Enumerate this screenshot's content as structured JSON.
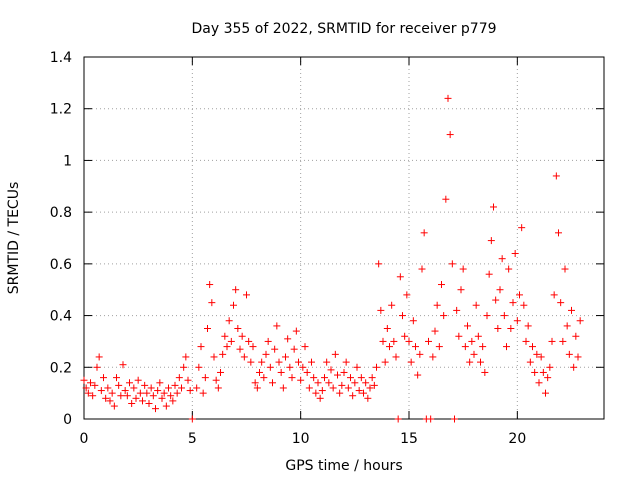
{
  "chart_data": {
    "type": "scatter",
    "title": "Day 355 of 2022, SRMTID for receiver p779",
    "xlabel": "GPS time / hours",
    "ylabel": "SRMTID / TECUs",
    "xlim": [
      0,
      24
    ],
    "ylim": [
      0,
      1.4
    ],
    "xticks": [
      0,
      5,
      10,
      15,
      20
    ],
    "xtick_labels": [
      "0",
      "5",
      "10",
      "15",
      "20"
    ],
    "yticks": [
      0,
      0.2,
      0.4,
      0.6,
      0.8,
      1.0,
      1.2,
      1.4
    ],
    "ytick_labels": [
      "0",
      "0.2",
      "0.4",
      "0.6",
      "0.8",
      "1",
      "1.2",
      "1.4"
    ],
    "grid": true,
    "marker": "+",
    "color": "#ff0000",
    "series": [
      {
        "name": "SRMTID",
        "points": [
          [
            0.0,
            0.15
          ],
          [
            0.1,
            0.12
          ],
          [
            0.2,
            0.1
          ],
          [
            0.3,
            0.14
          ],
          [
            0.4,
            0.09
          ],
          [
            0.5,
            0.13
          ],
          [
            0.6,
            0.2
          ],
          [
            0.7,
            0.24
          ],
          [
            0.8,
            0.11
          ],
          [
            0.9,
            0.16
          ],
          [
            1.0,
            0.08
          ],
          [
            1.1,
            0.12
          ],
          [
            1.2,
            0.07
          ],
          [
            1.3,
            0.1
          ],
          [
            1.4,
            0.05
          ],
          [
            1.5,
            0.16
          ],
          [
            1.6,
            0.13
          ],
          [
            1.7,
            0.09
          ],
          [
            1.8,
            0.21
          ],
          [
            1.9,
            0.11
          ],
          [
            2.0,
            0.09
          ],
          [
            2.1,
            0.14
          ],
          [
            2.2,
            0.06
          ],
          [
            2.3,
            0.12
          ],
          [
            2.4,
            0.08
          ],
          [
            2.5,
            0.15
          ],
          [
            2.6,
            0.1
          ],
          [
            2.7,
            0.07
          ],
          [
            2.8,
            0.13
          ],
          [
            2.9,
            0.1
          ],
          [
            3.0,
            0.06
          ],
          [
            3.1,
            0.12
          ],
          [
            3.2,
            0.09
          ],
          [
            3.3,
            0.04
          ],
          [
            3.4,
            0.11
          ],
          [
            3.5,
            0.14
          ],
          [
            3.6,
            0.08
          ],
          [
            3.7,
            0.1
          ],
          [
            3.8,
            0.05
          ],
          [
            3.9,
            0.12
          ],
          [
            4.0,
            0.09
          ],
          [
            4.1,
            0.07
          ],
          [
            4.2,
            0.13
          ],
          [
            4.3,
            0.1
          ],
          [
            4.4,
            0.16
          ],
          [
            4.5,
            0.12
          ],
          [
            4.6,
            0.2
          ],
          [
            4.7,
            0.24
          ],
          [
            4.8,
            0.15
          ],
          [
            4.9,
            0.11
          ],
          [
            5.0,
            0.0
          ],
          [
            5.2,
            0.12
          ],
          [
            5.3,
            0.2
          ],
          [
            5.4,
            0.28
          ],
          [
            5.5,
            0.1
          ],
          [
            5.6,
            0.16
          ],
          [
            5.7,
            0.35
          ],
          [
            5.8,
            0.52
          ],
          [
            5.9,
            0.45
          ],
          [
            6.0,
            0.24
          ],
          [
            6.1,
            0.15
          ],
          [
            6.2,
            0.12
          ],
          [
            6.3,
            0.18
          ],
          [
            6.4,
            0.25
          ],
          [
            6.5,
            0.32
          ],
          [
            6.6,
            0.28
          ],
          [
            6.7,
            0.38
          ],
          [
            6.8,
            0.3
          ],
          [
            6.9,
            0.44
          ],
          [
            7.0,
            0.5
          ],
          [
            7.1,
            0.35
          ],
          [
            7.2,
            0.27
          ],
          [
            7.3,
            0.32
          ],
          [
            7.4,
            0.24
          ],
          [
            7.5,
            0.48
          ],
          [
            7.6,
            0.3
          ],
          [
            7.7,
            0.22
          ],
          [
            7.8,
            0.28
          ],
          [
            7.9,
            0.14
          ],
          [
            8.0,
            0.12
          ],
          [
            8.1,
            0.18
          ],
          [
            8.2,
            0.22
          ],
          [
            8.3,
            0.16
          ],
          [
            8.4,
            0.25
          ],
          [
            8.5,
            0.3
          ],
          [
            8.6,
            0.2
          ],
          [
            8.7,
            0.14
          ],
          [
            8.8,
            0.27
          ],
          [
            8.9,
            0.36
          ],
          [
            9.0,
            0.22
          ],
          [
            9.1,
            0.18
          ],
          [
            9.2,
            0.12
          ],
          [
            9.3,
            0.24
          ],
          [
            9.4,
            0.31
          ],
          [
            9.5,
            0.2
          ],
          [
            9.6,
            0.16
          ],
          [
            9.7,
            0.27
          ],
          [
            9.8,
            0.34
          ],
          [
            9.9,
            0.22
          ],
          [
            10.0,
            0.15
          ],
          [
            10.1,
            0.2
          ],
          [
            10.2,
            0.28
          ],
          [
            10.3,
            0.18
          ],
          [
            10.4,
            0.12
          ],
          [
            10.5,
            0.22
          ],
          [
            10.6,
            0.16
          ],
          [
            10.7,
            0.1
          ],
          [
            10.8,
            0.14
          ],
          [
            10.9,
            0.08
          ],
          [
            11.0,
            0.11
          ],
          [
            11.1,
            0.16
          ],
          [
            11.2,
            0.22
          ],
          [
            11.3,
            0.14
          ],
          [
            11.4,
            0.19
          ],
          [
            11.5,
            0.12
          ],
          [
            11.6,
            0.25
          ],
          [
            11.7,
            0.17
          ],
          [
            11.8,
            0.1
          ],
          [
            11.9,
            0.13
          ],
          [
            12.0,
            0.18
          ],
          [
            12.1,
            0.22
          ],
          [
            12.2,
            0.12
          ],
          [
            12.3,
            0.16
          ],
          [
            12.4,
            0.09
          ],
          [
            12.5,
            0.14
          ],
          [
            12.6,
            0.2
          ],
          [
            12.7,
            0.11
          ],
          [
            12.8,
            0.16
          ],
          [
            12.9,
            0.1
          ],
          [
            13.0,
            0.14
          ],
          [
            13.1,
            0.08
          ],
          [
            13.2,
            0.12
          ],
          [
            13.3,
            0.16
          ],
          [
            13.4,
            0.13
          ],
          [
            13.5,
            0.2
          ],
          [
            13.6,
            0.6
          ],
          [
            13.7,
            0.42
          ],
          [
            13.8,
            0.3
          ],
          [
            13.9,
            0.22
          ],
          [
            14.0,
            0.35
          ],
          [
            14.1,
            0.28
          ],
          [
            14.2,
            0.44
          ],
          [
            14.3,
            0.3
          ],
          [
            14.4,
            0.24
          ],
          [
            14.5,
            0.0
          ],
          [
            14.6,
            0.55
          ],
          [
            14.7,
            0.4
          ],
          [
            14.8,
            0.32
          ],
          [
            14.9,
            0.48
          ],
          [
            15.0,
            0.3
          ],
          [
            15.1,
            0.22
          ],
          [
            15.2,
            0.38
          ],
          [
            15.3,
            0.28
          ],
          [
            15.4,
            0.17
          ],
          [
            15.5,
            0.25
          ],
          [
            15.6,
            0.58
          ],
          [
            15.7,
            0.72
          ],
          [
            15.8,
            0.0
          ],
          [
            15.9,
            0.3
          ],
          [
            16.0,
            0.0
          ],
          [
            16.1,
            0.24
          ],
          [
            16.2,
            0.34
          ],
          [
            16.3,
            0.44
          ],
          [
            16.4,
            0.28
          ],
          [
            16.5,
            0.52
          ],
          [
            16.6,
            0.4
          ],
          [
            16.7,
            0.85
          ],
          [
            16.8,
            1.24
          ],
          [
            16.9,
            1.1
          ],
          [
            17.0,
            0.6
          ],
          [
            17.1,
            0.0
          ],
          [
            17.2,
            0.42
          ],
          [
            17.3,
            0.32
          ],
          [
            17.4,
            0.5
          ],
          [
            17.5,
            0.58
          ],
          [
            17.6,
            0.28
          ],
          [
            17.7,
            0.36
          ],
          [
            17.8,
            0.22
          ],
          [
            17.9,
            0.3
          ],
          [
            18.0,
            0.25
          ],
          [
            18.1,
            0.44
          ],
          [
            18.2,
            0.32
          ],
          [
            18.3,
            0.22
          ],
          [
            18.4,
            0.28
          ],
          [
            18.5,
            0.18
          ],
          [
            18.6,
            0.4
          ],
          [
            18.7,
            0.56
          ],
          [
            18.8,
            0.69
          ],
          [
            18.9,
            0.82
          ],
          [
            19.0,
            0.46
          ],
          [
            19.1,
            0.35
          ],
          [
            19.2,
            0.5
          ],
          [
            19.3,
            0.62
          ],
          [
            19.4,
            0.4
          ],
          [
            19.5,
            0.28
          ],
          [
            19.6,
            0.58
          ],
          [
            19.7,
            0.35
          ],
          [
            19.8,
            0.45
          ],
          [
            19.9,
            0.64
          ],
          [
            20.0,
            0.38
          ],
          [
            20.1,
            0.48
          ],
          [
            20.2,
            0.74
          ],
          [
            20.3,
            0.44
          ],
          [
            20.4,
            0.3
          ],
          [
            20.5,
            0.36
          ],
          [
            20.6,
            0.22
          ],
          [
            20.7,
            0.28
          ],
          [
            20.8,
            0.18
          ],
          [
            20.9,
            0.25
          ],
          [
            21.0,
            0.14
          ],
          [
            21.1,
            0.24
          ],
          [
            21.2,
            0.18
          ],
          [
            21.3,
            0.1
          ],
          [
            21.4,
            0.16
          ],
          [
            21.5,
            0.2
          ],
          [
            21.6,
            0.3
          ],
          [
            21.7,
            0.48
          ],
          [
            21.8,
            0.94
          ],
          [
            21.9,
            0.72
          ],
          [
            22.0,
            0.45
          ],
          [
            22.1,
            0.3
          ],
          [
            22.2,
            0.58
          ],
          [
            22.3,
            0.36
          ],
          [
            22.4,
            0.25
          ],
          [
            22.5,
            0.42
          ],
          [
            22.6,
            0.2
          ],
          [
            22.7,
            0.32
          ],
          [
            22.8,
            0.24
          ],
          [
            22.9,
            0.38
          ]
        ]
      }
    ]
  }
}
